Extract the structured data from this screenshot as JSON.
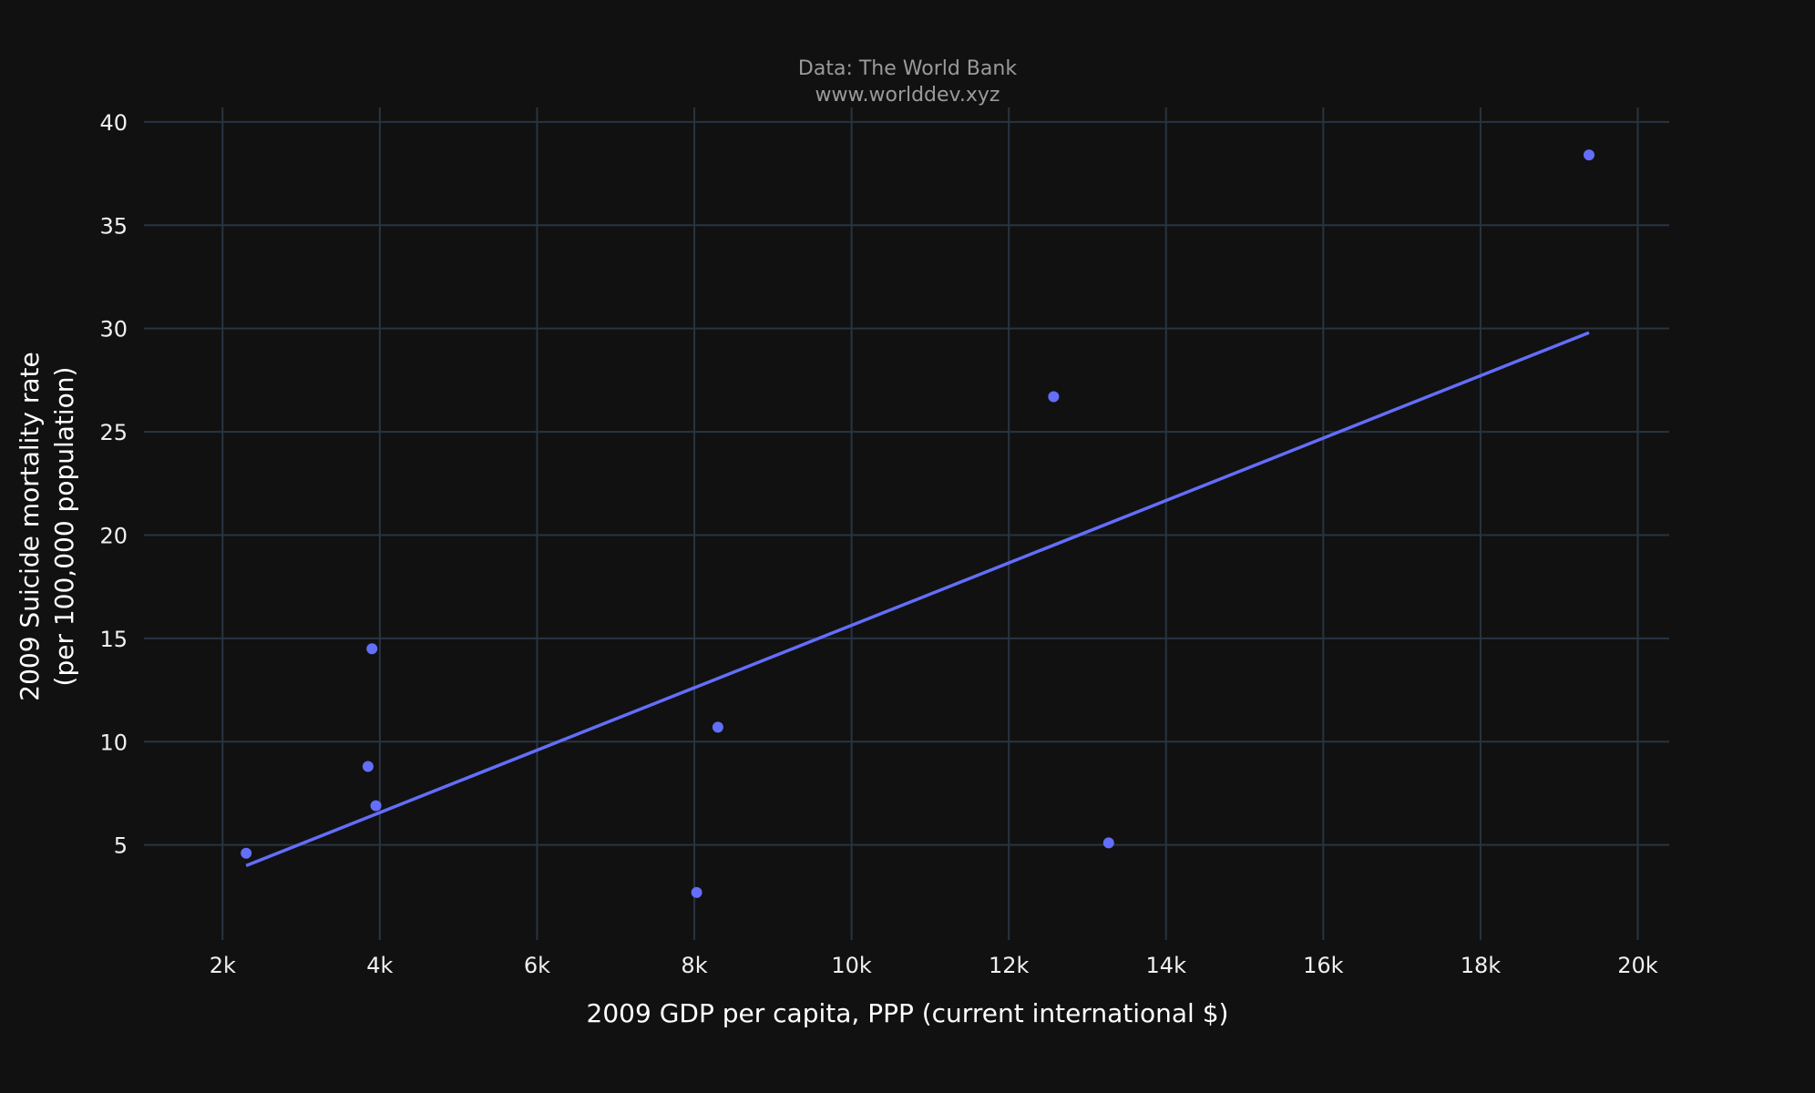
{
  "chart_data": {
    "type": "scatter",
    "subtitle_lines": [
      "Data: The World Bank",
      "www.worlddev.xyz"
    ],
    "xlabel": "2009 GDP per capita, PPP (current international $)",
    "ylabel_lines": [
      "2009 Suicide mortality rate",
      "(per 100,000 population)"
    ],
    "xlim": [
      1000,
      20400
    ],
    "ylim": [
      0.4,
      40.7
    ],
    "x_ticks": [
      2000,
      4000,
      6000,
      8000,
      10000,
      12000,
      14000,
      16000,
      18000,
      20000
    ],
    "x_tick_labels": [
      "2k",
      "4k",
      "6k",
      "8k",
      "10k",
      "12k",
      "14k",
      "16k",
      "18k",
      "20k"
    ],
    "y_ticks": [
      5,
      10,
      15,
      20,
      25,
      30,
      35,
      40
    ],
    "y_tick_labels": [
      "5",
      "10",
      "15",
      "20",
      "25",
      "30",
      "35",
      "40"
    ],
    "grid": true,
    "series": [
      {
        "type": "scatter",
        "color": "#636efa",
        "points": [
          {
            "x": 2300,
            "y": 4.6
          },
          {
            "x": 3850,
            "y": 8.8
          },
          {
            "x": 3900,
            "y": 14.5
          },
          {
            "x": 3950,
            "y": 6.9
          },
          {
            "x": 8030,
            "y": 2.7
          },
          {
            "x": 8300,
            "y": 10.7
          },
          {
            "x": 12570,
            "y": 26.7
          },
          {
            "x": 13270,
            "y": 5.1
          },
          {
            "x": 19380,
            "y": 38.4
          }
        ]
      },
      {
        "type": "line",
        "color": "#636efa",
        "points": [
          {
            "x": 2300,
            "y": 4.0
          },
          {
            "x": 19380,
            "y": 29.8
          }
        ]
      }
    ]
  }
}
